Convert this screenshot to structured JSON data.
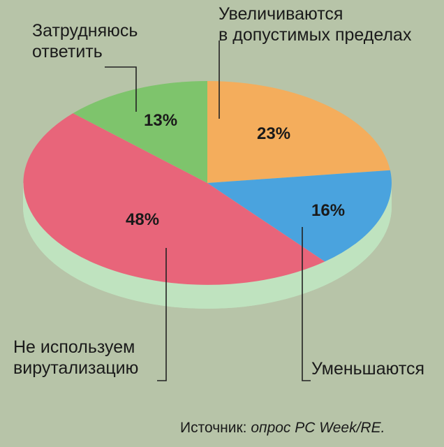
{
  "chart_data": {
    "type": "pie",
    "slices": [
      {
        "label_lines": [
          "Увеличиваются",
          "в допустимых пределах"
        ],
        "value": 23,
        "value_label": "23%",
        "color": "#f4ad5c"
      },
      {
        "label_lines": [
          "Уменьшаются"
        ],
        "value": 16,
        "value_label": "16%",
        "color": "#4aa3de"
      },
      {
        "label_lines": [
          "Не используем",
          "вирутализацию"
        ],
        "value": 48,
        "value_label": "48%",
        "color": "#e8657a"
      },
      {
        "label_lines": [
          "Затрудняюсь",
          "ответить"
        ],
        "value": 13,
        "value_label": "13%",
        "color": "#7ec46c"
      }
    ],
    "source": {
      "prefix": "Источник: ",
      "text": "опрос PC Week/RE."
    },
    "style": {
      "background": "#b7c4a8",
      "pie_side_color": "#bfe3bf",
      "pie_3d": true
    }
  }
}
